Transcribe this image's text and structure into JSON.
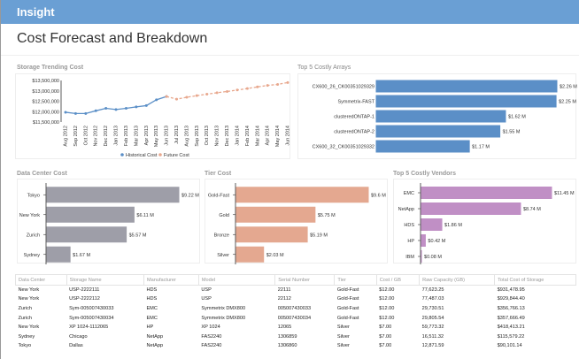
{
  "app": {
    "name": "Insight"
  },
  "page": {
    "title": "Cost Forecast and Breakdown"
  },
  "panels": {
    "trend": {
      "title": "Storage Trending Cost"
    },
    "arrays": {
      "title": "Top 5 Costly Arrays"
    },
    "datacenter": {
      "title": "Data Center Cost"
    },
    "tier": {
      "title": "Tier Cost"
    },
    "vendors": {
      "title": "Top 5 Costly Vendors"
    }
  },
  "chart_data": [
    {
      "id": "trend",
      "type": "line",
      "title": "Storage Trending Cost",
      "ylim": [
        11500000,
        13500000
      ],
      "yticks": [
        "$11,500,000",
        "$12,000,000",
        "$12,500,000",
        "$13,000,000",
        "$13,500,000"
      ],
      "categories": [
        "Aug 2012",
        "Sep 2012",
        "Oct 2012",
        "Nov 2012",
        "Dec 2012",
        "Jan 2013",
        "Feb 2013",
        "Mar 2013",
        "Apr 2013",
        "May 2013",
        "Jun 2013",
        "Jul 2013",
        "Aug 2013",
        "Sep 2013",
        "Oct 2013",
        "Nov 2013",
        "Dec 2013",
        "Jan 2014",
        "Feb 2014",
        "Mar 2014",
        "Apr 2014",
        "May 2014",
        "Jun 2014"
      ],
      "legend": "bottom",
      "series": [
        {
          "name": "Historical Cost",
          "color": "#5b8fc7",
          "values": [
            11970000,
            11910000,
            11910000,
            12040000,
            12160000,
            12100000,
            12160000,
            12230000,
            12290000,
            12570000,
            12730000,
            null,
            null,
            null,
            null,
            null,
            null,
            null,
            null,
            null,
            null,
            null,
            null
          ]
        },
        {
          "name": "Future Cost",
          "color": "#e8a88e",
          "values": [
            null,
            null,
            null,
            null,
            null,
            null,
            null,
            null,
            null,
            null,
            12730000,
            12600000,
            12690000,
            12770000,
            12840000,
            12910000,
            12970000,
            13040000,
            13110000,
            13190000,
            13260000,
            13310000,
            13400000
          ]
        }
      ]
    },
    {
      "id": "arrays",
      "type": "bar",
      "color": "#5b8fc7",
      "max": 2.26,
      "categories": [
        "CX600_26_CK00351029329",
        "Symmetrix-FAST",
        "clusteredONTAP-1",
        "clusteredONTAP-2",
        "CX600_32_CK00351029332"
      ],
      "values": [
        2.26,
        2.25,
        1.62,
        1.55,
        1.17
      ],
      "labels": [
        "$2.26 M",
        "$2.25 M",
        "$1.62 M",
        "$1.55 M",
        "$1.17 M"
      ]
    },
    {
      "id": "datacenter",
      "type": "bar",
      "color": "#9e9ea8",
      "max": 9.22,
      "categories": [
        "Tokyo",
        "New York",
        "Zurich",
        "Sydney"
      ],
      "values": [
        9.22,
        6.11,
        5.57,
        1.67
      ],
      "labels": [
        "$9.22 M",
        "$6.11 M",
        "$5.57 M",
        "$1.67 M"
      ]
    },
    {
      "id": "tier",
      "type": "bar",
      "color": "#e4a890",
      "max": 9.6,
      "categories": [
        "Gold-Fast",
        "Gold",
        "Bronze",
        "Silver"
      ],
      "values": [
        9.6,
        5.75,
        5.19,
        2.03
      ],
      "labels": [
        "$9.6 M",
        "$5.75 M",
        "$5.19 M",
        "$2.03 M"
      ]
    },
    {
      "id": "vendors",
      "type": "bar",
      "color": "#c08fc5",
      "max": 11.45,
      "categories": [
        "EMC",
        "NetApp",
        "HDS",
        "HP",
        "IBM"
      ],
      "values": [
        11.45,
        8.74,
        1.86,
        0.42,
        0.08
      ],
      "labels": [
        "$11.45 M",
        "$8.74 M",
        "$1.86 M",
        "$0.42 M",
        "$0.08 M"
      ]
    }
  ],
  "table": {
    "headers": [
      "Data Center",
      "Storage Name",
      "Manufacturer",
      "Model",
      "Serial Number",
      "Tier",
      "Cost / GB",
      "Raw Capacity (GB)",
      "Total Cost of Storage"
    ],
    "rows": [
      [
        "New York",
        "USP-2222111",
        "HDS",
        "USP",
        "22111",
        "Gold-Fast",
        "$12.00",
        "77,623.25",
        "$931,478.95"
      ],
      [
        "New York",
        "USP-2222112",
        "HDS",
        "USP",
        "22112",
        "Gold-Fast",
        "$12.00",
        "77,487.03",
        "$929,844.40"
      ],
      [
        "Zurich",
        "Sym-005007430033",
        "EMC",
        "Symmetrix DMX800",
        "005007430033",
        "Gold-Fast",
        "$12.00",
        "29,730.51",
        "$356,766.13"
      ],
      [
        "Zurich",
        "Sym-005007430034",
        "EMC",
        "Symmetrix DMX800",
        "005007430034",
        "Gold-Fast",
        "$12.00",
        "29,805.54",
        "$357,666.49"
      ],
      [
        "New York",
        "XP 1024-1112065",
        "HP",
        "XP 1024",
        "12065",
        "Silver",
        "$7.00",
        "59,773.32",
        "$418,413.21"
      ],
      [
        "Sydney",
        "Chicago",
        "NetApp",
        "FAS2240",
        "1306859",
        "Silver",
        "$7.00",
        "16,511.32",
        "$115,579.22"
      ],
      [
        "Tokyo",
        "Dallas",
        "NetApp",
        "FAS2240",
        "1306860",
        "Silver",
        "$7.00",
        "12,871.59",
        "$90,101.14"
      ]
    ]
  }
}
